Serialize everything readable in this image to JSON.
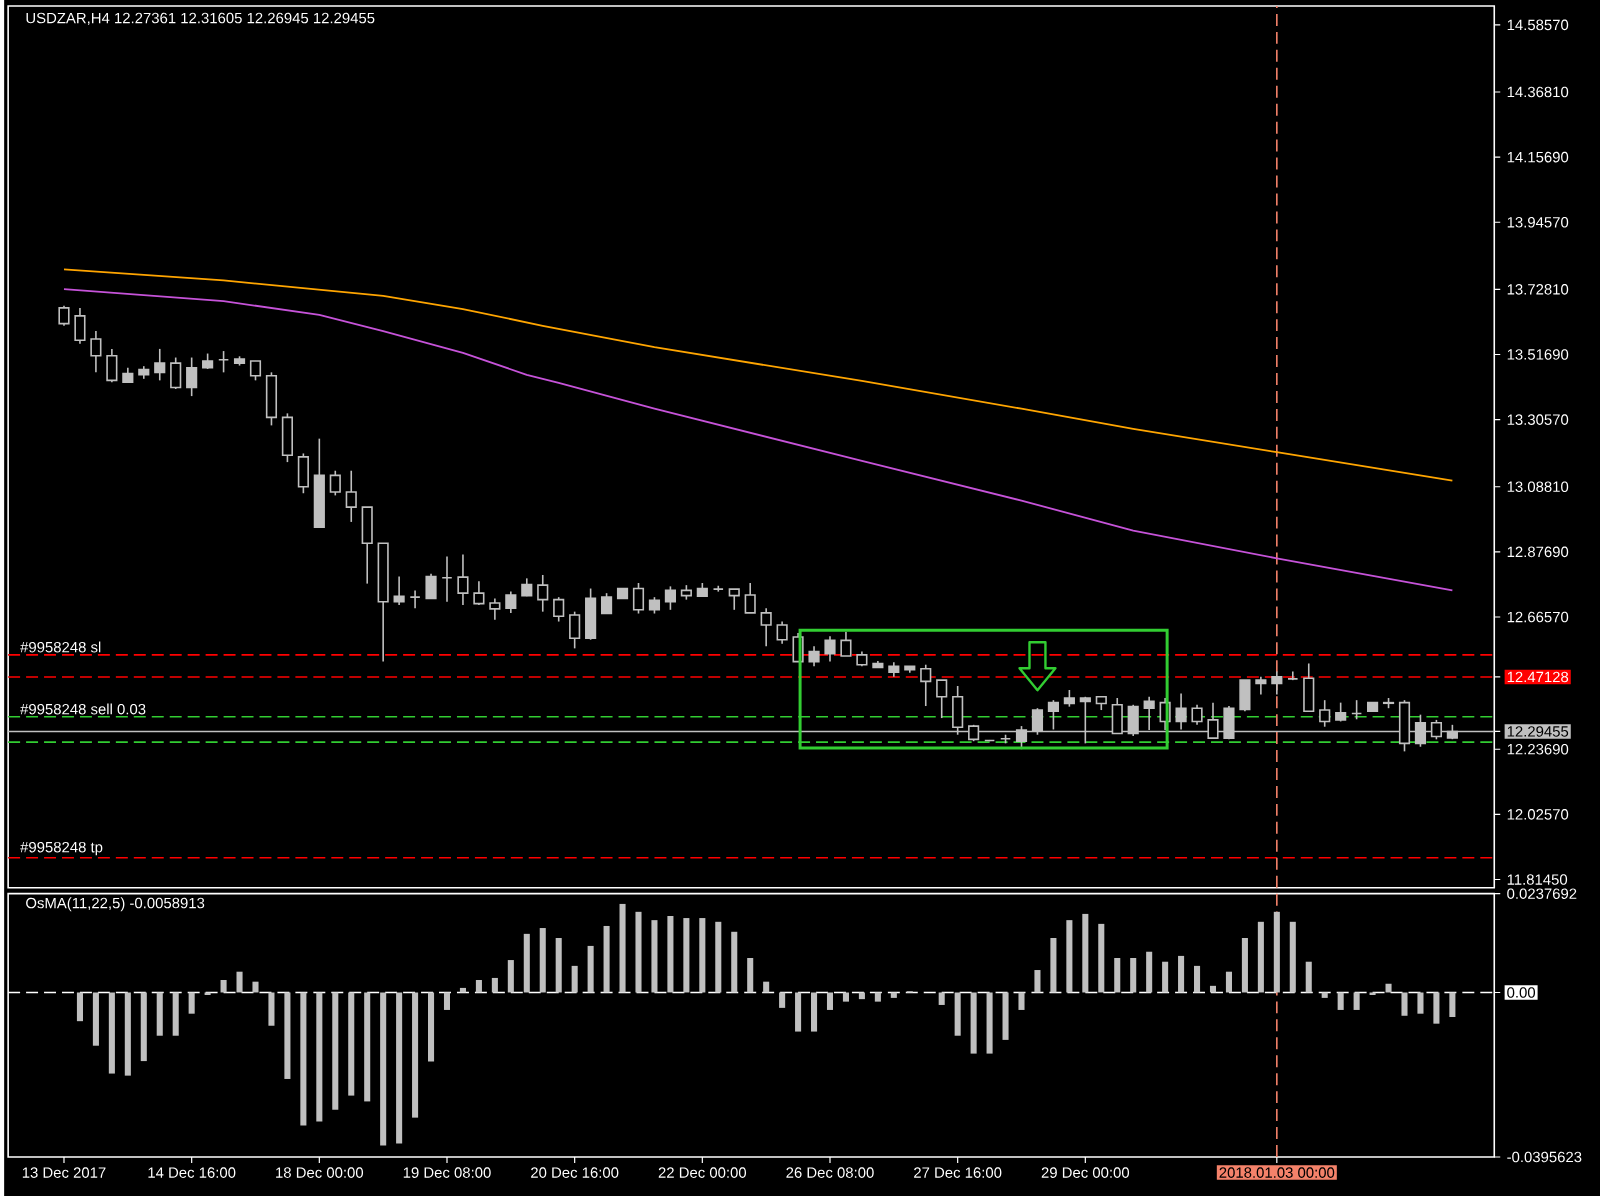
{
  "chart_data": [
    {
      "type": "candlestick",
      "title": "USDZAR,H4  12.27361 12.31605 12.26945 12.29455",
      "tick_labels": "y",
      "categories": [
        "13 Dec 2017",
        null,
        null,
        null,
        null,
        null,
        null,
        null,
        "14 Dec 16:00",
        null,
        null,
        null,
        null,
        null,
        null,
        null,
        "18 Dec 00:00",
        null,
        null,
        null,
        null,
        null,
        null,
        null,
        "19 Dec 08:00",
        null,
        null,
        null,
        null,
        null,
        null,
        null,
        "20 Dec 16:00",
        null,
        null,
        null,
        null,
        null,
        null,
        null,
        "22 Dec 00:00",
        null,
        null,
        null,
        null,
        null,
        null,
        null,
        "26 Dec 08:00",
        null,
        null,
        null,
        null,
        null,
        null,
        null,
        "27 Dec 16:00",
        null,
        null,
        null,
        null,
        null,
        null,
        null,
        "29 Dec 00:00",
        null,
        null,
        null,
        null,
        null,
        null,
        null,
        null,
        null,
        null,
        null,
        "2018.01.03 00:00",
        null,
        null,
        null,
        null,
        null,
        null,
        null,
        null,
        null,
        null,
        null
      ],
      "ohlc": [
        [
          13.668,
          13.675,
          13.61,
          13.617
        ],
        [
          13.642,
          13.668,
          13.552,
          13.563
        ],
        [
          13.567,
          13.593,
          13.459,
          13.513
        ],
        [
          13.513,
          13.535,
          13.427,
          13.433
        ],
        [
          13.427,
          13.474,
          13.427,
          13.455
        ],
        [
          13.451,
          13.479,
          13.438,
          13.468
        ],
        [
          13.459,
          13.535,
          13.433,
          13.489
        ],
        [
          13.489,
          13.507,
          13.405,
          13.41
        ],
        [
          13.41,
          13.507,
          13.382,
          13.474
        ],
        [
          13.474,
          13.52,
          13.47,
          13.496
        ],
        [
          13.5,
          13.528,
          13.459,
          13.5
        ],
        [
          13.489,
          13.511,
          13.481,
          13.502
        ],
        [
          13.496,
          13.496,
          13.433,
          13.448
        ],
        [
          13.448,
          13.459,
          13.287,
          13.313
        ],
        [
          13.313,
          13.326,
          13.168,
          13.19
        ],
        [
          13.185,
          13.196,
          13.067,
          13.088
        ],
        [
          12.957,
          13.244,
          12.957,
          13.125
        ],
        [
          13.125,
          13.14,
          13.06,
          13.071
        ],
        [
          13.071,
          13.14,
          12.974,
          13.022
        ],
        [
          13.022,
          13.022,
          12.774,
          12.905
        ],
        [
          12.905,
          12.905,
          12.521,
          12.715
        ],
        [
          12.715,
          12.797,
          12.705,
          12.733
        ],
        [
          12.73,
          12.752,
          12.694,
          12.73
        ],
        [
          12.726,
          12.806,
          12.726,
          12.797
        ],
        [
          12.793,
          12.862,
          12.715,
          12.793
        ],
        [
          12.795,
          12.868,
          12.705,
          12.743
        ],
        [
          12.743,
          12.782,
          12.705,
          12.709
        ],
        [
          12.711,
          12.726,
          12.657,
          12.692
        ],
        [
          12.694,
          12.748,
          12.679,
          12.737
        ],
        [
          12.735,
          12.791,
          12.733,
          12.771
        ],
        [
          12.769,
          12.802,
          12.683,
          12.722
        ],
        [
          12.722,
          12.73,
          12.651,
          12.668
        ],
        [
          12.672,
          12.683,
          12.564,
          12.597
        ],
        [
          12.597,
          12.758,
          12.592,
          12.726
        ],
        [
          12.677,
          12.743,
          12.677,
          12.73
        ],
        [
          12.726,
          12.758,
          12.726,
          12.758
        ],
        [
          12.758,
          12.776,
          12.677,
          12.689
        ],
        [
          12.689,
          12.73,
          12.677,
          12.72
        ],
        [
          12.715,
          12.765,
          12.689,
          12.752
        ],
        [
          12.752,
          12.769,
          12.722,
          12.735
        ],
        [
          12.733,
          12.776,
          12.733,
          12.758
        ],
        [
          12.756,
          12.767,
          12.748,
          12.756
        ],
        [
          12.756,
          12.756,
          12.689,
          12.735
        ],
        [
          12.737,
          12.776,
          12.679,
          12.679
        ],
        [
          12.679,
          12.694,
          12.571,
          12.64
        ],
        [
          12.64,
          12.651,
          12.579,
          12.592
        ],
        [
          12.601,
          12.614,
          12.521,
          12.521
        ],
        [
          12.521,
          12.571,
          12.506,
          12.554
        ],
        [
          12.547,
          12.603,
          12.521,
          12.59
        ],
        [
          12.59,
          12.618,
          12.539,
          12.539
        ],
        [
          12.543,
          12.554,
          12.506,
          12.511
        ],
        [
          12.502,
          12.523,
          12.502,
          12.515
        ],
        [
          12.487,
          12.519,
          12.472,
          12.506
        ],
        [
          12.495,
          12.506,
          12.485,
          12.506
        ],
        [
          12.498,
          12.511,
          12.377,
          12.457
        ],
        [
          12.461,
          12.461,
          12.338,
          12.407
        ],
        [
          12.407,
          12.442,
          12.284,
          12.308
        ],
        [
          12.312,
          12.316,
          12.263,
          12.269
        ],
        [
          12.265,
          12.267,
          12.263,
          12.265
        ],
        [
          12.271,
          12.284,
          12.256,
          12.271
        ],
        [
          12.263,
          12.312,
          12.237,
          12.299
        ],
        [
          12.295,
          12.37,
          12.284,
          12.364
        ],
        [
          12.36,
          12.396,
          12.301,
          12.388
        ],
        [
          12.385,
          12.429,
          12.375,
          12.403
        ],
        [
          12.392,
          12.407,
          12.256,
          12.403
        ],
        [
          12.407,
          12.407,
          12.364,
          12.385
        ],
        [
          12.381,
          12.403,
          12.288,
          12.288
        ],
        [
          12.288,
          12.381,
          12.28,
          12.375
        ],
        [
          12.37,
          12.407,
          12.299,
          12.392
        ],
        [
          12.388,
          12.403,
          12.299,
          12.327
        ],
        [
          12.327,
          12.418,
          12.301,
          12.37
        ],
        [
          12.37,
          12.381,
          12.316,
          12.327
        ],
        [
          12.332,
          12.388,
          12.273,
          12.273
        ],
        [
          12.273,
          12.377,
          12.269,
          12.37
        ],
        [
          12.366,
          12.461,
          12.36,
          12.461
        ],
        [
          12.45,
          12.472,
          12.414,
          12.461
        ],
        [
          12.45,
          12.489,
          12.414,
          12.472
        ],
        [
          12.465,
          12.489,
          12.461,
          12.465
        ],
        [
          12.467,
          12.515,
          12.36,
          12.36
        ],
        [
          12.364,
          12.396,
          12.31,
          12.327
        ],
        [
          12.332,
          12.388,
          12.327,
          12.355
        ],
        [
          12.353,
          12.396,
          12.334,
          12.353
        ],
        [
          12.36,
          12.388,
          12.36,
          12.388
        ],
        [
          12.388,
          12.403,
          12.37,
          12.386
        ],
        [
          12.388,
          12.396,
          12.23,
          12.256
        ],
        [
          12.256,
          12.349,
          12.245,
          12.323
        ],
        [
          12.323,
          12.332,
          12.269,
          12.278
        ],
        [
          12.27361,
          12.31605,
          12.26945,
          12.29455
        ]
      ],
      "series": [
        {
          "type": "line",
          "color": "#ffa500",
          "values": [
            13.793,
            null,
            null,
            null,
            null,
            null,
            null,
            null,
            null,
            null,
            13.757,
            null,
            null,
            null,
            null,
            null,
            null,
            null,
            null,
            null,
            13.707,
            null,
            null,
            null,
            null,
            13.664,
            null,
            null,
            null,
            null,
            13.61,
            null,
            null,
            null,
            null,
            null,
            null,
            13.541,
            null,
            null,
            null,
            null,
            null,
            null,
            null,
            null,
            null,
            null,
            null,
            null,
            13.431,
            null,
            null,
            null,
            null,
            null,
            null,
            null,
            null,
            null,
            13.341,
            null,
            null,
            null,
            null,
            null,
            null,
            13.276,
            null,
            null,
            null,
            null,
            null,
            null,
            null,
            null,
            13.2,
            null,
            null,
            null,
            null,
            null,
            null,
            null,
            null,
            null,
            null,
            13.108
          ]
        },
        {
          "type": "line",
          "color": "#c653d9",
          "values": [
            13.729,
            null,
            null,
            null,
            null,
            null,
            null,
            null,
            null,
            null,
            13.69,
            null,
            null,
            null,
            null,
            null,
            13.645,
            null,
            null,
            null,
            13.593,
            null,
            null,
            null,
            null,
            13.522,
            null,
            null,
            null,
            13.451,
            null,
            13.425,
            null,
            null,
            null,
            null,
            null,
            13.341,
            null,
            null,
            null,
            null,
            null,
            null,
            null,
            null,
            null,
            null,
            null,
            null,
            13.172,
            null,
            null,
            null,
            null,
            null,
            null,
            null,
            null,
            null,
            13.043,
            null,
            null,
            null,
            null,
            null,
            null,
            12.946,
            null,
            null,
            null,
            null,
            null,
            null,
            null,
            null,
            12.856,
            null,
            null,
            null,
            null,
            null,
            null,
            null,
            null,
            null,
            null,
            12.752
          ]
        }
      ],
      "ylim": [
        11.788,
        14.647
      ],
      "yticks": [
        {
          "value": 11.8145,
          "label": "11.81450"
        },
        {
          "value": 12.0257,
          "label": "12.02570"
        },
        {
          "value": 12.2369,
          "label": "12.23690"
        },
        {
          "value": 12.29455,
          "label": "12.29455"
        },
        {
          "value": 12.47128,
          "label": "12.47128"
        },
        {
          "value": 12.6657,
          "label": "12.66570"
        },
        {
          "value": 12.8769,
          "label": "12.87690"
        },
        {
          "value": 13.0881,
          "label": "13.08810"
        },
        {
          "value": 13.3057,
          "label": "13.30570"
        },
        {
          "value": 13.5169,
          "label": "13.51690"
        },
        {
          "value": 13.7281,
          "label": "13.72810"
        },
        {
          "value": 13.9457,
          "label": "13.94570"
        },
        {
          "value": 14.1569,
          "label": "14.15690"
        },
        {
          "value": 14.3681,
          "label": "14.36810"
        },
        {
          "value": 14.5857,
          "label": "14.58570"
        }
      ],
      "ref_lines": [
        {
          "axis": "y",
          "value": 12.543,
          "label": "#9958248 sl",
          "color": "#ff0000",
          "line_style": "dashed"
        },
        {
          "axis": "y",
          "value": 12.47128,
          "color": "#ff0000",
          "line_style": "dashed"
        },
        {
          "axis": "y",
          "value": 12.342,
          "label": "#9958248 sell 0.03",
          "color": "#32cd32",
          "line_style": "dashed"
        },
        {
          "axis": "y",
          "value": 12.26,
          "color": "#32cd32",
          "line_style": "dashed"
        },
        {
          "axis": "y",
          "value": 12.29455,
          "color": "#c0c0c0",
          "line_style": "solid"
        },
        {
          "axis": "y",
          "value": 11.885,
          "label": "#9958248 tp",
          "color": "#ff0000",
          "line_style": "dashed"
        },
        {
          "axis": "x",
          "value": "2018.01.03 00:00",
          "color": "#f4826a",
          "line_style": "dashed"
        }
      ]
    },
    {
      "type": "bar",
      "title": "OsMA(11,22,5) -0.0058913",
      "color": "#c0c0c0",
      "categories": [
        "13 Dec 2017",
        null,
        null,
        null,
        null,
        null,
        null,
        null,
        "14 Dec 16:00",
        null,
        null,
        null,
        null,
        null,
        null,
        null,
        "18 Dec 00:00",
        null,
        null,
        null,
        null,
        null,
        null,
        null,
        "19 Dec 08:00",
        null,
        null,
        null,
        null,
        null,
        null,
        null,
        "20 Dec 16:00",
        null,
        null,
        null,
        null,
        null,
        null,
        null,
        "22 Dec 00:00",
        null,
        null,
        null,
        null,
        null,
        null,
        null,
        "26 Dec 08:00",
        null,
        null,
        null,
        null,
        null,
        null,
        null,
        "27 Dec 16:00",
        null,
        null,
        null,
        null,
        null,
        null,
        null,
        "29 Dec 00:00",
        null,
        null,
        null,
        null,
        null,
        null,
        null,
        null,
        null,
        null,
        null,
        "2018.01.03 00:00",
        null,
        null,
        null,
        null,
        null,
        null,
        null,
        null,
        null,
        null,
        null
      ],
      "values": [
        null,
        -0.0069,
        -0.0128,
        -0.0195,
        -0.02,
        -0.0165,
        -0.0104,
        -0.0104,
        -0.0051,
        -0.0006,
        0.003,
        0.005,
        0.0026,
        -0.008,
        -0.0208,
        -0.032,
        -0.031,
        -0.0282,
        -0.0248,
        -0.0262,
        -0.0368,
        -0.0363,
        -0.0301,
        -0.0166,
        -0.0042,
        0.0011,
        0.003,
        0.0035,
        0.0078,
        0.0141,
        0.0155,
        0.0131,
        0.0064,
        0.0112,
        0.016,
        0.0213,
        0.0194,
        0.0174,
        0.0184,
        0.0179,
        0.0179,
        0.017,
        0.0146,
        0.0083,
        0.0026,
        -0.0037,
        -0.0094,
        -0.0094,
        -0.0042,
        -0.0022,
        -0.0016,
        -0.0022,
        -0.0013,
        0.0003,
        0.0,
        -0.003,
        -0.0104,
        -0.0147,
        -0.0147,
        -0.0114,
        -0.0042,
        0.0054,
        0.0131,
        0.0174,
        0.0189,
        0.0165,
        0.0083,
        0.0083,
        0.0098,
        0.0074,
        0.0088,
        0.0064,
        0.0016,
        0.005,
        0.0131,
        0.017,
        0.0194,
        0.017,
        0.0074,
        -0.0013,
        -0.0042,
        -0.0042,
        -0.0006,
        0.0021,
        -0.0056,
        -0.0051,
        -0.0075,
        -0.0059
      ],
      "ylim": [
        -0.0395623,
        0.0237692
      ],
      "yticks": [
        {
          "value": -0.0395623,
          "label": "-0.0395623"
        },
        {
          "value": 0,
          "label": "0.00"
        },
        {
          "value": 0.0237692,
          "label": "0.0237692"
        }
      ],
      "ref_lines": [
        {
          "axis": "y",
          "value": 0,
          "color": "#ffffff",
          "line_style": "dashed"
        },
        {
          "axis": "x",
          "value": "2018.01.03 00:00",
          "color": "#f4826a",
          "line_style": "dashed"
        }
      ]
    }
  ]
}
